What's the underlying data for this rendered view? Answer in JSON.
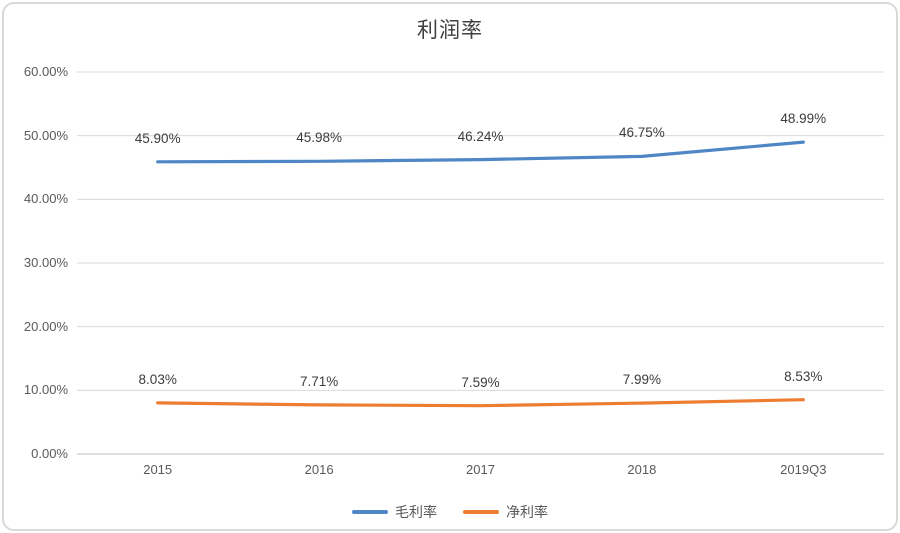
{
  "chart_data": {
    "type": "line",
    "title": "利润率",
    "categories": [
      "2015",
      "2016",
      "2017",
      "2018",
      "2019Q3"
    ],
    "series": [
      {
        "name": "毛利率",
        "color": "#4e86c6",
        "values": [
          45.9,
          45.98,
          46.24,
          46.75,
          48.99
        ],
        "labels": [
          "45.90%",
          "45.98%",
          "46.24%",
          "46.75%",
          "48.99%"
        ]
      },
      {
        "name": "净利率",
        "color": "#ed7d31",
        "values": [
          8.03,
          7.71,
          7.59,
          7.99,
          8.53
        ],
        "labels": [
          "8.03%",
          "7.71%",
          "7.59%",
          "7.99%",
          "8.53%"
        ]
      }
    ],
    "y_axis": {
      "min": 0,
      "max": 60,
      "step": 10,
      "tick_labels": [
        "0.00%",
        "10.00%",
        "20.00%",
        "30.00%",
        "40.00%",
        "50.00%",
        "60.00%"
      ]
    },
    "xlabel": "",
    "ylabel": "",
    "grid": true,
    "legend_position": "bottom",
    "colors": {
      "gridline": "#d9d9d9",
      "axis_line": "#bfbfbf",
      "tick_text": "#595959",
      "title_text": "#404040",
      "background": "#ffffff",
      "border": "#d9d9d9"
    }
  }
}
